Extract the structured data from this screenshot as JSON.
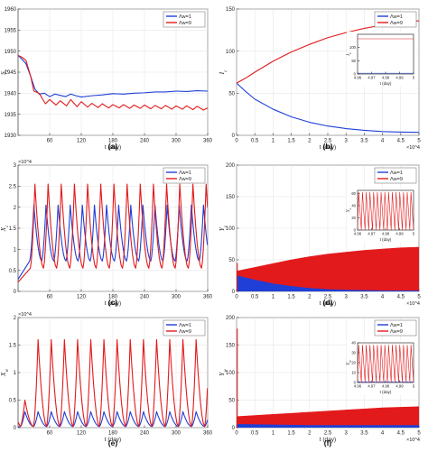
{
  "figure_id": "dynamics-panels",
  "chart_data": [
    {
      "id": "a",
      "panel_label": "(a)",
      "type": "line",
      "xlabel": "t (day)",
      "ylabel": "S_c",
      "xlim": [
        0,
        360
      ],
      "ylim": [
        1930,
        1960
      ],
      "xticks": [
        60,
        120,
        180,
        240,
        300,
        360
      ],
      "yticks": [
        1930,
        1935,
        1940,
        1945,
        1950,
        1955,
        1960
      ],
      "legend": "top-right",
      "series": [
        {
          "name": "Λw=1",
          "color": "#1f3fd6",
          "points": [
            [
              0,
              1949
            ],
            [
              8,
              1948
            ],
            [
              15,
              1947
            ],
            [
              24,
              1944
            ],
            [
              32,
              1941
            ],
            [
              40,
              1939.8
            ],
            [
              50,
              1940
            ],
            [
              60,
              1939.2
            ],
            [
              70,
              1939.8
            ],
            [
              80,
              1939.5
            ],
            [
              90,
              1939.2
            ],
            [
              100,
              1939.8
            ],
            [
              110,
              1939.4
            ],
            [
              120,
              1939.1
            ],
            [
              140,
              1939.4
            ],
            [
              160,
              1939.6
            ],
            [
              180,
              1939.9
            ],
            [
              200,
              1939.8
            ],
            [
              220,
              1940
            ],
            [
              240,
              1940.1
            ],
            [
              260,
              1940.3
            ],
            [
              280,
              1940.3
            ],
            [
              300,
              1940.5
            ],
            [
              320,
              1940.4
            ],
            [
              340,
              1940.6
            ],
            [
              360,
              1940.5
            ]
          ]
        },
        {
          "name": "Λw=9",
          "color": "#e31a1c",
          "points": [
            [
              0,
              1949
            ],
            [
              8,
              1948.5
            ],
            [
              15,
              1947.8
            ],
            [
              24,
              1944
            ],
            [
              30,
              1940.5
            ],
            [
              40,
              1940
            ],
            [
              52,
              1937.5
            ],
            [
              60,
              1938.5
            ],
            [
              72,
              1937.2
            ],
            [
              80,
              1938.2
            ],
            [
              92,
              1937
            ],
            [
              100,
              1938.5
            ],
            [
              112,
              1936.8
            ],
            [
              120,
              1938
            ],
            [
              132,
              1936.7
            ],
            [
              140,
              1937.6
            ],
            [
              152,
              1936.6
            ],
            [
              160,
              1937.5
            ],
            [
              172,
              1936.5
            ],
            [
              180,
              1937.3
            ],
            [
              192,
              1936.5
            ],
            [
              200,
              1937.3
            ],
            [
              212,
              1936.4
            ],
            [
              220,
              1937.2
            ],
            [
              232,
              1936.4
            ],
            [
              240,
              1937.2
            ],
            [
              252,
              1936.3
            ],
            [
              260,
              1937.1
            ],
            [
              272,
              1936.3
            ],
            [
              280,
              1937.1
            ],
            [
              292,
              1936.2
            ],
            [
              300,
              1937
            ],
            [
              312,
              1936.2
            ],
            [
              320,
              1937
            ],
            [
              332,
              1936.1
            ],
            [
              340,
              1936.9
            ],
            [
              352,
              1936
            ],
            [
              360,
              1936.5
            ]
          ]
        }
      ]
    },
    {
      "id": "b",
      "panel_label": "(b)",
      "type": "line",
      "xlabel": "t (day)",
      "ylabel": "I_c",
      "xlim": [
        0,
        5
      ],
      "ylim": [
        0,
        150
      ],
      "xticks": [
        0,
        0.5,
        1,
        1.5,
        2,
        2.5,
        3,
        3.5,
        4,
        4.5,
        5
      ],
      "yticks": [
        0,
        50,
        100,
        150
      ],
      "x_multiplier": "×10^4",
      "legend": "top-right",
      "series": [
        {
          "name": "Λw=1",
          "color": "#1f3fd6",
          "points": [
            [
              0,
              62
            ],
            [
              0.25,
              52
            ],
            [
              0.5,
              43
            ],
            [
              1,
              31
            ],
            [
              1.5,
              22
            ],
            [
              2,
              15.5
            ],
            [
              2.5,
              11
            ],
            [
              3,
              8
            ],
            [
              3.5,
              6
            ],
            [
              4,
              4.5
            ],
            [
              4.5,
              3.8
            ],
            [
              5,
              3.5
            ]
          ]
        },
        {
          "name": "Λw=9",
          "color": "#e31a1c",
          "points": [
            [
              0,
              62
            ],
            [
              0.25,
              68
            ],
            [
              0.5,
              75
            ],
            [
              1,
              88
            ],
            [
              1.5,
              99
            ],
            [
              2,
              108
            ],
            [
              2.5,
              116
            ],
            [
              3,
              122
            ],
            [
              3.5,
              127
            ],
            [
              4,
              131
            ],
            [
              4.5,
              134
            ],
            [
              5,
              136
            ]
          ]
        }
      ],
      "inset": {
        "ylabel": "I_c",
        "xlabel": "t (day)",
        "xlim": [
          4.96,
          5
        ],
        "ylim": [
          0,
          150
        ],
        "xticks": [
          4.96,
          4.97,
          4.98,
          4.99,
          5
        ],
        "yticks": [
          0,
          50,
          100
        ],
        "x_multiplier": "×10^4",
        "series": [
          {
            "name": "Λw=1",
            "color": "#1f3fd6",
            "points": [
              [
                4.96,
                3
              ],
              [
                5,
                3
              ]
            ]
          },
          {
            "name": "Λw=9",
            "color": "#e31a1c",
            "points": [
              [
                4.96,
                133
              ],
              [
                5,
                133
              ]
            ]
          }
        ]
      }
    },
    {
      "id": "c",
      "panel_label": "(c)",
      "type": "line",
      "xlabel": "t (day)",
      "ylabel": "X_c",
      "y_multiplier": "×10^4",
      "xlim": [
        0,
        360
      ],
      "ylim": [
        0,
        3
      ],
      "xticks": [
        60,
        120,
        180,
        240,
        300,
        360
      ],
      "yticks": [
        0,
        0.5,
        1,
        1.5,
        2,
        2.5,
        3
      ],
      "legend": "top-right",
      "series": [
        {
          "name": "Λw=1",
          "color": "#1f3fd6",
          "period": 23,
          "first_peak": 30,
          "peak": 2.05,
          "trough": 0.72
        },
        {
          "name": "Λw=9",
          "color": "#e31a1c",
          "period": 25,
          "first_peak": 32,
          "peak": 2.55,
          "trough": 0.55
        }
      ]
    },
    {
      "id": "d",
      "panel_label": "(d)",
      "type": "area",
      "xlabel": "t (day)",
      "ylabel": "Y_c",
      "xlim": [
        0,
        5
      ],
      "ylim": [
        0,
        200
      ],
      "xticks": [
        0,
        0.5,
        1,
        1.5,
        2,
        2.5,
        3,
        3.5,
        4,
        4.5,
        5
      ],
      "yticks": [
        0,
        50,
        100,
        150,
        200
      ],
      "x_multiplier": "×10^4",
      "legend": "top-right",
      "series": [
        {
          "name": "Λw=1",
          "color": "#1f3fd6",
          "upper": [
            [
              0,
              25
            ],
            [
              0.5,
              18
            ],
            [
              1,
              12
            ],
            [
              1.5,
              8
            ],
            [
              2,
              5
            ],
            [
              2.5,
              3
            ],
            [
              3,
              2
            ],
            [
              3.5,
              1.5
            ],
            [
              4,
              1
            ],
            [
              4.5,
              1
            ],
            [
              5,
              1
            ]
          ]
        },
        {
          "name": "Λw=9",
          "color": "#e31a1c",
          "upper": [
            [
              0,
              32
            ],
            [
              0.5,
              38
            ],
            [
              1,
              44
            ],
            [
              1.5,
              50
            ],
            [
              2,
              55
            ],
            [
              2.5,
              59
            ],
            [
              3,
              62
            ],
            [
              3.5,
              65
            ],
            [
              4,
              67
            ],
            [
              4.5,
              69
            ],
            [
              5,
              70
            ]
          ]
        }
      ],
      "inset": {
        "ylabel": "Y_c",
        "xlabel": "t (day)",
        "xlim": [
          4.96,
          5
        ],
        "ylim": [
          0,
          65
        ],
        "xticks": [
          4.96,
          4.97,
          4.98,
          4.99,
          5
        ],
        "yticks": [
          0,
          20,
          40,
          60
        ],
        "x_multiplier": "×10^4",
        "series": [
          {
            "name": "Λw=1",
            "color": "#1f3fd6",
            "cycles": 0
          },
          {
            "name": "Λw=9",
            "color": "#e31a1c",
            "cycles": 15,
            "peak": 62,
            "trough": 0
          }
        ]
      }
    },
    {
      "id": "e",
      "panel_label": "(e)",
      "type": "line",
      "xlabel": "t (day)",
      "ylabel": "X_w",
      "y_multiplier": "×10^4",
      "xlim": [
        0,
        360
      ],
      "ylim": [
        0,
        2
      ],
      "xticks": [
        60,
        120,
        180,
        240,
        300,
        360
      ],
      "yticks": [
        0,
        0.5,
        1,
        1.5,
        2
      ],
      "legend": "top-right",
      "series": [
        {
          "name": "Λw=1",
          "color": "#1f3fd6",
          "period": 25,
          "first_peak": 13,
          "peak": 0.29,
          "trough": 0.02
        },
        {
          "name": "Λw=9",
          "color": "#e31a1c",
          "period": 25,
          "first_peak": 13,
          "peak": 1.6,
          "trough": 0.02,
          "first_peak_value": 0.5
        }
      ]
    },
    {
      "id": "f",
      "panel_label": "(f)",
      "type": "area",
      "xlabel": "t (day)",
      "ylabel": "Y_w",
      "xlim": [
        0,
        5
      ],
      "ylim": [
        0,
        200
      ],
      "xticks": [
        0,
        0.5,
        1,
        1.5,
        2,
        2.5,
        3,
        3.5,
        4,
        4.5,
        5
      ],
      "yticks": [
        0,
        50,
        100,
        150,
        200
      ],
      "x_multiplier": "×10^4",
      "legend": "top-right",
      "series": [
        {
          "name": "Λw=1",
          "color": "#1f3fd6",
          "upper": [
            [
              0,
              6
            ],
            [
              1,
              5
            ],
            [
              2,
              4
            ],
            [
              3,
              4
            ],
            [
              4,
              4
            ],
            [
              5,
              4
            ]
          ]
        },
        {
          "name": "Λw=9",
          "color": "#e31a1c",
          "upper": [
            [
              0,
              20
            ],
            [
              0.5,
              22
            ],
            [
              1,
              24
            ],
            [
              1.5,
              26
            ],
            [
              2,
              28
            ],
            [
              2.5,
              30
            ],
            [
              3,
              32
            ],
            [
              3.5,
              34
            ],
            [
              4,
              36
            ],
            [
              4.5,
              37
            ],
            [
              5,
              38
            ]
          ]
        }
      ],
      "inset": {
        "ylabel": "Y_w",
        "xlabel": "t (day)",
        "xlim": [
          4.96,
          5
        ],
        "ylim": [
          0,
          40
        ],
        "xticks": [
          4.96,
          4.97,
          4.98,
          4.99,
          5
        ],
        "yticks": [
          0,
          10,
          20,
          30,
          40
        ],
        "x_multiplier": "×10^4",
        "series": [
          {
            "name": "Λw=1",
            "color": "#1f3fd6",
            "cycles": 15,
            "peak": 1,
            "trough": 0
          },
          {
            "name": "Λw=9",
            "color": "#e31a1c",
            "cycles": 15,
            "peak": 38,
            "trough": 0
          }
        ]
      }
    }
  ]
}
